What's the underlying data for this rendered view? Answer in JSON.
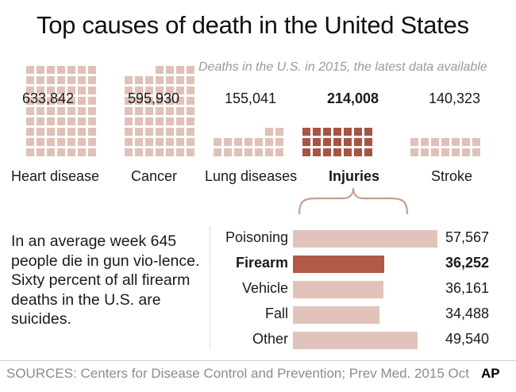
{
  "title": "Top causes of death in the United States",
  "subtitle": "Deaths in the U.S. in 2015, the latest data available",
  "colors": {
    "square": "#dfc1b8",
    "square_highlight": "#a65443",
    "bar": "#e2c3bb",
    "bar_highlight": "#b05a47",
    "brace": "#c99d92"
  },
  "chart_data": [
    {
      "type": "waffle",
      "title": "Deaths in the U.S. in 2015, the latest data available",
      "categories": [
        "Heart disease",
        "Cancer",
        "Lung diseases",
        "Injuries",
        "Stroke"
      ],
      "values": [
        633842,
        595930,
        155041,
        214008,
        140323
      ],
      "value_labels": [
        "633,842",
        "595,930",
        "155,041",
        "214,008",
        "140,323"
      ],
      "highlight": "Injuries"
    },
    {
      "type": "bar",
      "orientation": "horizontal",
      "categories": [
        "Poisoning",
        "Firearm",
        "Vehicle",
        "Fall",
        "Other"
      ],
      "values": [
        57567,
        36252,
        36161,
        34488,
        49540
      ],
      "value_labels": [
        "57,567",
        "36,252",
        "36,161",
        "34,488",
        "49,540"
      ],
      "highlight": "Firearm",
      "xlim": [
        0,
        60000
      ]
    }
  ],
  "note": "In an average week 645 people die in gun vio-lence. Sixty percent of all firearm deaths in the U.S. are suicides.",
  "source": "SOURCES: Centers for Disease Control and Prevention; Prev Med. 2015 Oct",
  "logo_text": "AP"
}
